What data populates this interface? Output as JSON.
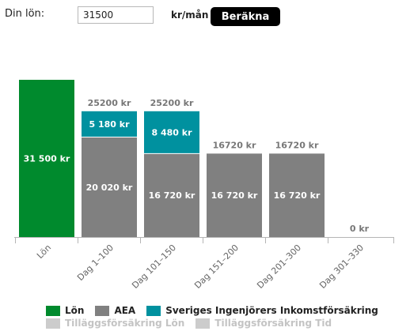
{
  "form": {
    "salary_label": "Din lön:",
    "salary_value": "31500",
    "unit": "kr/mån",
    "button": "Beräkna"
  },
  "colors": {
    "salary": "#008a2d",
    "aea": "#808080",
    "insurance": "#00919f",
    "disabled": "#cccccc",
    "total_label": "#777777"
  },
  "chart_data": {
    "type": "bar",
    "stacked": true,
    "categories": [
      "Lön",
      "Dag 1–100",
      "Dag 101–150",
      "Dag 151–200",
      "Dag 201–300",
      "Dag 301–330"
    ],
    "ylim": [
      0,
      31500
    ],
    "grid": false,
    "legend": "bottom",
    "series": [
      {
        "name": "Lön",
        "color": "#008a2d",
        "values": [
          31500,
          0,
          0,
          0,
          0,
          0
        ],
        "labels": [
          "31 500 kr",
          "",
          "",
          "",
          "",
          ""
        ]
      },
      {
        "name": "AEA",
        "color": "#808080",
        "values": [
          0,
          20020,
          16720,
          16720,
          16720,
          0
        ],
        "labels": [
          "",
          "20 020 kr",
          "16 720 kr",
          "16 720 kr",
          "16 720 kr",
          ""
        ]
      },
      {
        "name": "Sveriges Ingenjörers Inkomstförsäkring",
        "color": "#00919f",
        "values": [
          0,
          5180,
          8480,
          0,
          0,
          0
        ],
        "labels": [
          "",
          "5 180 kr",
          "8 480 kr",
          "",
          "",
          ""
        ]
      },
      {
        "name": "Tilläggsförsäkring Lön",
        "color": "#cccccc",
        "disabled": true,
        "values": [
          0,
          0,
          0,
          0,
          0,
          0
        ],
        "labels": [
          "",
          "",
          "",
          "",
          "",
          ""
        ]
      },
      {
        "name": "Tilläggsförsäkring Tid",
        "color": "#cccccc",
        "disabled": true,
        "values": [
          0,
          0,
          0,
          0,
          0,
          0
        ],
        "labels": [
          "",
          "",
          "",
          "",
          "",
          ""
        ]
      }
    ],
    "totals": [
      "",
      "25200 kr",
      "25200 kr",
      "16720 kr",
      "16720 kr",
      "0 kr"
    ]
  }
}
